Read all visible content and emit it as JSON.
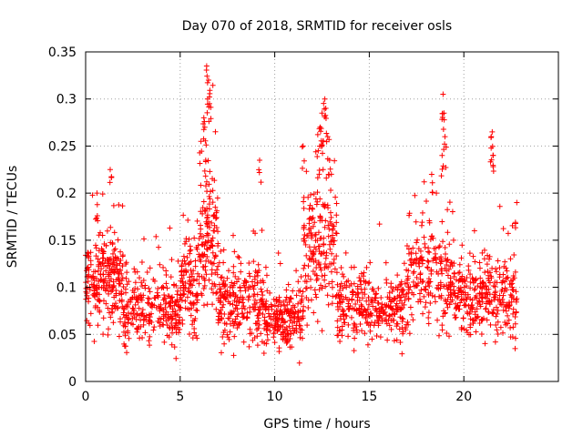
{
  "chart_data": {
    "type": "scatter",
    "title": "Day 070 of 2018, SRMTID for receiver osls",
    "xlabel": "GPS time / hours",
    "ylabel": "SRMTID / TECUs",
    "xlim": [
      0,
      25
    ],
    "ylim": [
      0,
      0.35
    ],
    "xticks": [
      0,
      5,
      10,
      15,
      20
    ],
    "xtick_labels": [
      "0",
      "5",
      "10",
      "15",
      "20"
    ],
    "yticks": [
      0,
      0.05,
      0.1,
      0.15,
      0.2,
      0.25,
      0.3,
      0.35
    ],
    "ytick_labels": [
      "0",
      "0.05",
      "0.1",
      "0.15",
      "0.2",
      "0.25",
      "0.3",
      "0.35"
    ],
    "grid": true,
    "marker": "+",
    "color": "#ff0000",
    "points_estimated_count": 2200,
    "series": [
      {
        "name": "SRMTID",
        "points_note": "estimated density profile, x in hours, y in TECU",
        "profile": [
          {
            "x0": 0.0,
            "x1": 2.0,
            "mean": 0.11,
            "spread": 0.04,
            "n": 240
          },
          {
            "x0": 2.0,
            "x1": 5.0,
            "mean": 0.075,
            "spread": 0.03,
            "n": 260
          },
          {
            "x0": 5.0,
            "x1": 6.0,
            "mean": 0.1,
            "spread": 0.035,
            "n": 110
          },
          {
            "x0": 6.0,
            "x1": 7.0,
            "mean": 0.15,
            "spread": 0.06,
            "n": 130
          },
          {
            "x0": 7.0,
            "x1": 9.5,
            "mean": 0.085,
            "spread": 0.035,
            "n": 230
          },
          {
            "x0": 9.5,
            "x1": 11.5,
            "mean": 0.065,
            "spread": 0.025,
            "n": 200
          },
          {
            "x0": 11.5,
            "x1": 13.3,
            "mean": 0.14,
            "spread": 0.06,
            "n": 190
          },
          {
            "x0": 13.3,
            "x1": 17.0,
            "mean": 0.08,
            "spread": 0.03,
            "n": 300
          },
          {
            "x0": 17.0,
            "x1": 19.5,
            "mean": 0.11,
            "spread": 0.04,
            "n": 220
          },
          {
            "x0": 19.5,
            "x1": 22.8,
            "mean": 0.09,
            "spread": 0.035,
            "n": 300
          }
        ],
        "peaks": [
          {
            "x": 6.1,
            "y": 0.255
          },
          {
            "x": 6.3,
            "y": 0.27
          },
          {
            "x": 6.4,
            "y": 0.335
          },
          {
            "x": 6.5,
            "y": 0.32
          },
          {
            "x": 6.45,
            "y": 0.3
          },
          {
            "x": 6.35,
            "y": 0.235
          },
          {
            "x": 6.55,
            "y": 0.295
          },
          {
            "x": 6.25,
            "y": 0.28
          },
          {
            "x": 12.4,
            "y": 0.27
          },
          {
            "x": 12.5,
            "y": 0.285
          },
          {
            "x": 12.65,
            "y": 0.3
          },
          {
            "x": 12.8,
            "y": 0.26
          },
          {
            "x": 12.9,
            "y": 0.235
          },
          {
            "x": 12.3,
            "y": 0.245
          },
          {
            "x": 12.7,
            "y": 0.29
          },
          {
            "x": 12.55,
            "y": 0.255
          },
          {
            "x": 18.9,
            "y": 0.305
          },
          {
            "x": 18.95,
            "y": 0.285
          },
          {
            "x": 19.0,
            "y": 0.26
          },
          {
            "x": 18.85,
            "y": 0.24
          },
          {
            "x": 21.5,
            "y": 0.265
          },
          {
            "x": 21.55,
            "y": 0.24
          },
          {
            "x": 21.45,
            "y": 0.26
          },
          {
            "x": 9.2,
            "y": 0.235
          },
          {
            "x": 1.3,
            "y": 0.225
          },
          {
            "x": 0.6,
            "y": 0.2
          },
          {
            "x": 11.5,
            "y": 0.25
          },
          {
            "x": 22.8,
            "y": 0.19
          },
          {
            "x": 18.3,
            "y": 0.22
          }
        ]
      }
    ]
  }
}
